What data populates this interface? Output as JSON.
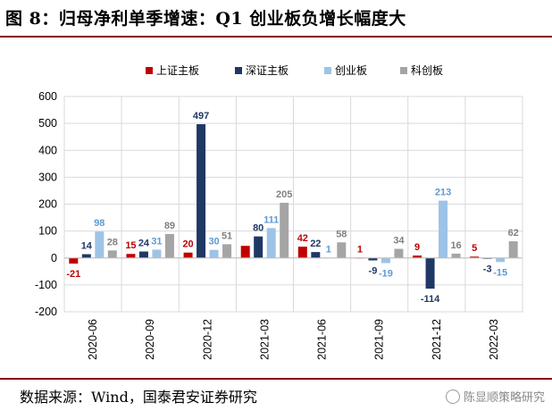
{
  "header": {
    "title": "图 8：归母净利单季增速：Q1 创业板负增长幅度大"
  },
  "footer": {
    "source": "数据来源：Wind，国泰君安证券研究",
    "watermark": "陈显顺策略研究"
  },
  "colors": {
    "rule": "#8b0000",
    "grid": "#d9d9d9"
  },
  "chart_data": {
    "type": "bar",
    "categories": [
      "2020-06",
      "2020-09",
      "2020-12",
      "2021-03",
      "2021-06",
      "2021-09",
      "2021-12",
      "2022-03"
    ],
    "ylim": [
      -200,
      600
    ],
    "yticks": [
      -200,
      -100,
      0,
      100,
      200,
      300,
      400,
      500,
      600
    ],
    "grid": true,
    "legend_position": "top-center",
    "series": [
      {
        "name": "上证主板",
        "color": "#c00000",
        "label_color": "#c00000",
        "values": [
          -21,
          15,
          20,
          45,
          42,
          1,
          9,
          5
        ],
        "labels": [
          "-21",
          "15",
          "20",
          "",
          "42",
          "1",
          "9",
          "5"
        ]
      },
      {
        "name": "深证主板",
        "color": "#1f3864",
        "label_color": "#1f3864",
        "values": [
          14,
          24,
          497,
          80,
          22,
          -9,
          -114,
          -3
        ],
        "labels": [
          "14",
          "24",
          "497",
          "80",
          "22",
          "-9",
          "-114",
          "-3"
        ]
      },
      {
        "name": "创业板",
        "color": "#9dc3e6",
        "label_color": "#5b9bd5",
        "values": [
          98,
          31,
          30,
          111,
          1,
          -19,
          213,
          -15
        ],
        "labels": [
          "98",
          "31",
          "30",
          "111",
          "1",
          "-19",
          "213",
          "-15"
        ]
      },
      {
        "name": "科创板",
        "color": "#a5a5a5",
        "label_color": "#808080",
        "values": [
          28,
          89,
          51,
          205,
          58,
          34,
          16,
          62
        ],
        "labels": [
          "28",
          "89",
          "51",
          "205",
          "58",
          "34",
          "16",
          "62"
        ]
      }
    ]
  }
}
